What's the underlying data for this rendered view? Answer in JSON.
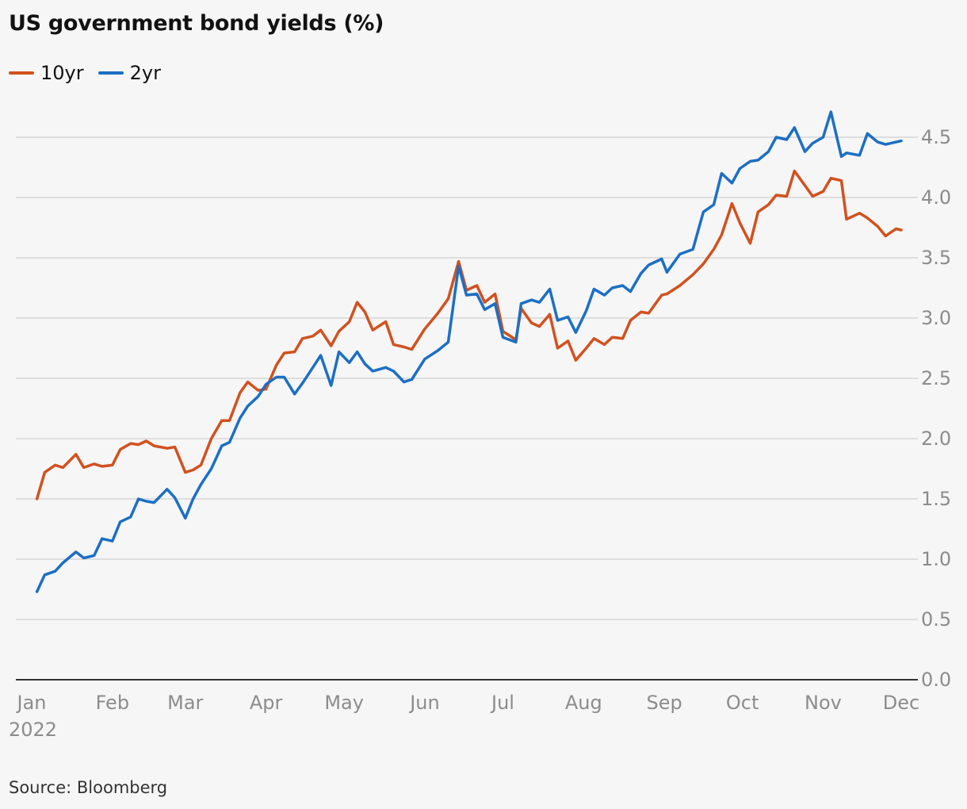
{
  "title": "US government bond yields (%)",
  "source": "Source: Bloomberg",
  "colors": {
    "10yr": "#d1511f",
    "2yr": "#1c6fc4",
    "grid": "#d6d6d6",
    "axis": "#333333",
    "tick_text": "#8c8c8c"
  },
  "chart_data": {
    "type": "line",
    "title": "US government bond yields (%)",
    "xlabel": "",
    "ylabel": "",
    "x_ticks": [
      "Jan",
      "Feb",
      "Mar",
      "Apr",
      "May",
      "Jun",
      "Jul",
      "Aug",
      "Sep",
      "Oct",
      "Nov",
      "Dec"
    ],
    "x_year_label": "2022",
    "y_ticks": [
      "0.0",
      "0.5",
      "1.0",
      "1.5",
      "2.0",
      "2.5",
      "3.0",
      "3.5",
      "4.0",
      "4.5"
    ],
    "ylim": [
      0,
      4.5
    ],
    "xlim": [
      "2022-01-01",
      "2022-12-01"
    ],
    "grid": true,
    "y_axis_side": "right",
    "legend_position": "top-left",
    "series": [
      {
        "name": "10yr",
        "x": [
          "2022-01-03",
          "2022-01-06",
          "2022-01-10",
          "2022-01-13",
          "2022-01-18",
          "2022-01-21",
          "2022-01-25",
          "2022-01-28",
          "2022-02-01",
          "2022-02-04",
          "2022-02-08",
          "2022-02-11",
          "2022-02-14",
          "2022-02-17",
          "2022-02-22",
          "2022-02-25",
          "2022-03-01",
          "2022-03-04",
          "2022-03-07",
          "2022-03-11",
          "2022-03-15",
          "2022-03-18",
          "2022-03-22",
          "2022-03-25",
          "2022-03-29",
          "2022-04-01",
          "2022-04-05",
          "2022-04-08",
          "2022-04-12",
          "2022-04-15",
          "2022-04-19",
          "2022-04-22",
          "2022-04-26",
          "2022-04-29",
          "2022-05-03",
          "2022-05-06",
          "2022-05-09",
          "2022-05-12",
          "2022-05-17",
          "2022-05-20",
          "2022-05-24",
          "2022-05-27",
          "2022-06-01",
          "2022-06-06",
          "2022-06-10",
          "2022-06-14",
          "2022-06-17",
          "2022-06-21",
          "2022-06-24",
          "2022-06-28",
          "2022-07-01",
          "2022-07-06",
          "2022-07-08",
          "2022-07-12",
          "2022-07-15",
          "2022-07-19",
          "2022-07-22",
          "2022-07-26",
          "2022-07-29",
          "2022-08-02",
          "2022-08-05",
          "2022-08-09",
          "2022-08-12",
          "2022-08-16",
          "2022-08-19",
          "2022-08-23",
          "2022-08-26",
          "2022-08-31",
          "2022-09-02",
          "2022-09-07",
          "2022-09-12",
          "2022-09-16",
          "2022-09-20",
          "2022-09-23",
          "2022-09-27",
          "2022-09-30",
          "2022-10-04",
          "2022-10-07",
          "2022-10-11",
          "2022-10-14",
          "2022-10-18",
          "2022-10-21",
          "2022-10-25",
          "2022-10-28",
          "2022-11-01",
          "2022-11-04",
          "2022-11-08",
          "2022-11-10",
          "2022-11-15",
          "2022-11-18",
          "2022-11-22",
          "2022-11-25",
          "2022-11-29",
          "2022-12-01"
        ],
        "values": [
          1.5,
          1.72,
          1.78,
          1.76,
          1.87,
          1.76,
          1.79,
          1.77,
          1.78,
          1.91,
          1.96,
          1.95,
          1.98,
          1.94,
          1.92,
          1.93,
          1.72,
          1.74,
          1.78,
          2.0,
          2.15,
          2.15,
          2.38,
          2.47,
          2.4,
          2.41,
          2.61,
          2.71,
          2.72,
          2.83,
          2.85,
          2.9,
          2.77,
          2.89,
          2.97,
          3.13,
          3.05,
          2.9,
          2.97,
          2.78,
          2.76,
          2.74,
          2.91,
          3.04,
          3.16,
          3.47,
          3.23,
          3.27,
          3.13,
          3.2,
          2.89,
          2.82,
          3.08,
          2.96,
          2.93,
          3.03,
          2.75,
          2.81,
          2.65,
          2.75,
          2.83,
          2.78,
          2.84,
          2.83,
          2.98,
          3.05,
          3.04,
          3.19,
          3.2,
          3.27,
          3.36,
          3.45,
          3.57,
          3.69,
          3.95,
          3.79,
          3.62,
          3.88,
          3.94,
          4.02,
          4.01,
          4.22,
          4.1,
          4.01,
          4.05,
          4.16,
          4.14,
          3.82,
          3.87,
          3.83,
          3.76,
          3.68,
          3.74,
          3.73
        ]
      },
      {
        "name": "2yr",
        "x": [
          "2022-01-03",
          "2022-01-06",
          "2022-01-10",
          "2022-01-13",
          "2022-01-18",
          "2022-01-21",
          "2022-01-25",
          "2022-01-28",
          "2022-02-01",
          "2022-02-04",
          "2022-02-08",
          "2022-02-11",
          "2022-02-14",
          "2022-02-17",
          "2022-02-22",
          "2022-02-25",
          "2022-03-01",
          "2022-03-04",
          "2022-03-07",
          "2022-03-11",
          "2022-03-15",
          "2022-03-18",
          "2022-03-22",
          "2022-03-25",
          "2022-03-29",
          "2022-04-01",
          "2022-04-05",
          "2022-04-08",
          "2022-04-12",
          "2022-04-15",
          "2022-04-19",
          "2022-04-22",
          "2022-04-26",
          "2022-04-29",
          "2022-05-03",
          "2022-05-06",
          "2022-05-09",
          "2022-05-12",
          "2022-05-17",
          "2022-05-20",
          "2022-05-24",
          "2022-05-27",
          "2022-06-01",
          "2022-06-06",
          "2022-06-10",
          "2022-06-14",
          "2022-06-17",
          "2022-06-21",
          "2022-06-24",
          "2022-06-28",
          "2022-07-01",
          "2022-07-06",
          "2022-07-08",
          "2022-07-12",
          "2022-07-15",
          "2022-07-19",
          "2022-07-22",
          "2022-07-26",
          "2022-07-29",
          "2022-08-02",
          "2022-08-05",
          "2022-08-09",
          "2022-08-12",
          "2022-08-16",
          "2022-08-19",
          "2022-08-23",
          "2022-08-26",
          "2022-08-31",
          "2022-09-02",
          "2022-09-07",
          "2022-09-12",
          "2022-09-16",
          "2022-09-20",
          "2022-09-23",
          "2022-09-27",
          "2022-09-30",
          "2022-10-04",
          "2022-10-07",
          "2022-10-11",
          "2022-10-14",
          "2022-10-18",
          "2022-10-21",
          "2022-10-25",
          "2022-10-28",
          "2022-11-01",
          "2022-11-04",
          "2022-11-08",
          "2022-11-10",
          "2022-11-15",
          "2022-11-18",
          "2022-11-22",
          "2022-11-25",
          "2022-11-29",
          "2022-12-01"
        ],
        "values": [
          0.73,
          0.87,
          0.9,
          0.97,
          1.06,
          1.01,
          1.03,
          1.17,
          1.15,
          1.31,
          1.35,
          1.5,
          1.48,
          1.47,
          1.58,
          1.51,
          1.34,
          1.5,
          1.62,
          1.75,
          1.94,
          1.97,
          2.17,
          2.27,
          2.35,
          2.45,
          2.51,
          2.51,
          2.37,
          2.46,
          2.59,
          2.69,
          2.44,
          2.72,
          2.63,
          2.72,
          2.62,
          2.56,
          2.59,
          2.56,
          2.47,
          2.49,
          2.66,
          2.73,
          2.8,
          3.43,
          3.19,
          3.2,
          3.07,
          3.12,
          2.84,
          2.8,
          3.12,
          3.15,
          3.13,
          3.24,
          2.98,
          3.01,
          2.88,
          3.06,
          3.24,
          3.19,
          3.25,
          3.27,
          3.22,
          3.37,
          3.44,
          3.49,
          3.38,
          3.53,
          3.57,
          3.88,
          3.94,
          4.2,
          4.12,
          4.24,
          4.3,
          4.31,
          4.38,
          4.5,
          4.48,
          4.58,
          4.38,
          4.45,
          4.5,
          4.71,
          4.34,
          4.37,
          4.35,
          4.53,
          4.46,
          4.44,
          4.46,
          4.47
        ]
      }
    ]
  }
}
